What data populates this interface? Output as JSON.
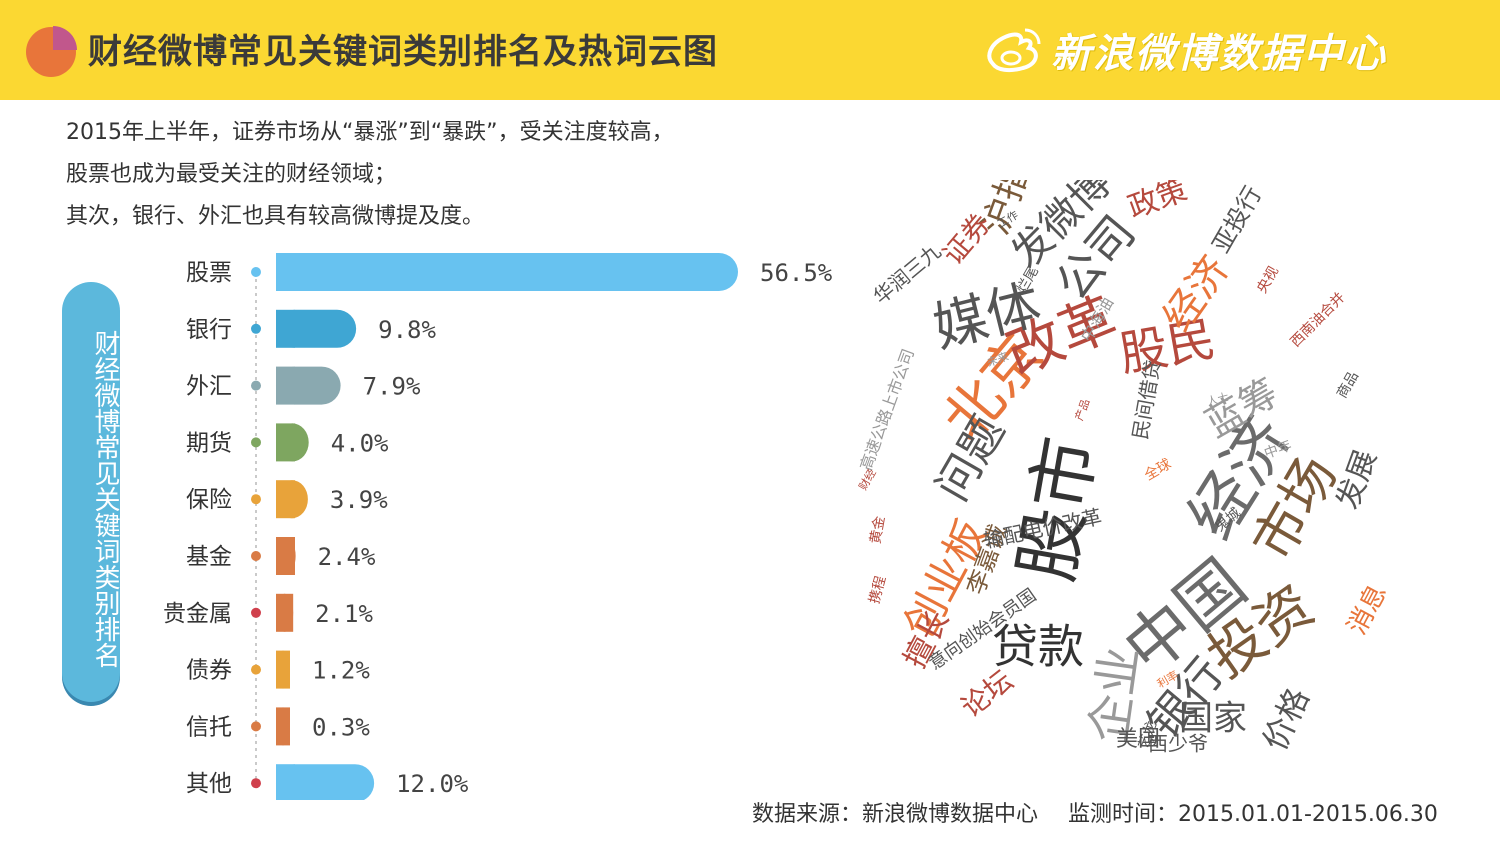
{
  "header": {
    "title": "财经微博常见关键词类别排名及热词云图",
    "brand": "新浪微博数据中心",
    "colors": {
      "background": "#fbd832",
      "pie_main": "#e8753a",
      "pie_slice": "#c1578c"
    }
  },
  "intro": {
    "lines": [
      "2015年上半年，证券市场从“暴涨”到“暴跌”，受关注度较高，",
      "股票也成为最受关注的财经领域；",
      "其次，银行、外汇也具有较高微博提及度。"
    ]
  },
  "side_label": "财经微博常见关键词类别排名",
  "chart_data": {
    "type": "bar",
    "orientation": "horizontal",
    "title": "财经微博常见关键词类别排名",
    "categories": [
      "股票",
      "银行",
      "外汇",
      "期货",
      "保险",
      "基金",
      "贵金属",
      "债券",
      "信托",
      "其他"
    ],
    "values": [
      56.5,
      9.8,
      7.9,
      4.0,
      3.9,
      2.4,
      2.1,
      1.2,
      0.3,
      12.0
    ],
    "value_labels": [
      "56.5%",
      "9.8%",
      "7.9%",
      "4.0%",
      "3.9%",
      "2.4%",
      "2.1%",
      "1.2%",
      "0.3%",
      "12.0%"
    ],
    "unit": "%",
    "colors": [
      "#67c2f0",
      "#3fa6d3",
      "#8aa9b0",
      "#7ea660",
      "#e8a33a",
      "#d97b45",
      "#d97b45",
      "#e8a33a",
      "#d97b45",
      "#67c2f0"
    ],
    "dot_colors": [
      "#67c2f0",
      "#3fa6d3",
      "#8aa9b0",
      "#7ea660",
      "#e8a33a",
      "#d97b45",
      "#d0404c",
      "#e8a33a",
      "#d97b45",
      "#d0404c"
    ],
    "xlim": [
      0,
      56.5
    ],
    "grid": false,
    "legend": "none"
  },
  "word_cloud": {
    "words": [
      {
        "text": "股市",
        "weight": 10,
        "color": "#333333"
      },
      {
        "text": "中国",
        "weight": 9,
        "color": "#6b6b6b"
      },
      {
        "text": "经济",
        "weight": 9,
        "color": "#6b6b6b"
      },
      {
        "text": "北京",
        "weight": 8,
        "color": "#e8753a"
      },
      {
        "text": "改革",
        "weight": 8,
        "color": "#b5493d"
      },
      {
        "text": "媒体",
        "weight": 8,
        "color": "#555555"
      },
      {
        "text": "投资",
        "weight": 8,
        "color": "#7a5a3a"
      },
      {
        "text": "市场",
        "weight": 8,
        "color": "#7a5a3a"
      },
      {
        "text": "企业",
        "weight": 7,
        "color": "#999999"
      },
      {
        "text": "贷款",
        "weight": 7,
        "color": "#333333"
      },
      {
        "text": "股民",
        "weight": 7,
        "color": "#b5493d"
      },
      {
        "text": "公司",
        "weight": 7,
        "color": "#555555"
      },
      {
        "text": "问题",
        "weight": 6,
        "color": "#555555"
      },
      {
        "text": "创业板",
        "weight": 6,
        "color": "#e8753a"
      },
      {
        "text": "银行",
        "weight": 6,
        "color": "#555555"
      },
      {
        "text": "发微博",
        "weight": 6,
        "color": "#555555"
      },
      {
        "text": "经济",
        "weight": 6,
        "color": "#e8753a"
      },
      {
        "text": "蓝筹",
        "weight": 6,
        "color": "#999999"
      },
      {
        "text": "沪指",
        "weight": 6,
        "color": "#7a5a3a"
      },
      {
        "text": "国家",
        "weight": 5,
        "color": "#555555"
      },
      {
        "text": "价格",
        "weight": 5,
        "color": "#555555"
      },
      {
        "text": "发展",
        "weight": 5,
        "color": "#555555"
      },
      {
        "text": "政策",
        "weight": 5,
        "color": "#b5493d"
      },
      {
        "text": "证券",
        "weight": 5,
        "color": "#b5493d"
      },
      {
        "text": "擅长",
        "weight": 5,
        "color": "#b5493d"
      },
      {
        "text": "论坛",
        "weight": 4,
        "color": "#b5493d"
      },
      {
        "text": "消息",
        "weight": 4,
        "color": "#e8753a"
      },
      {
        "text": "李嘉诚",
        "weight": 4,
        "color": "#7a5a3a"
      },
      {
        "text": "亚投行",
        "weight": 4,
        "color": "#555555"
      },
      {
        "text": "美国",
        "weight": 4,
        "color": "#555555"
      },
      {
        "text": "西少爷",
        "weight": 3,
        "color": "#555555"
      },
      {
        "text": "华润三九",
        "weight": 3,
        "color": "#555555"
      },
      {
        "text": "输配电价改革",
        "weight": 3,
        "color": "#555555"
      },
      {
        "text": "意向创始会员国",
        "weight": 3,
        "color": "#555555"
      },
      {
        "text": "民间借贷",
        "weight": 3,
        "color": "#555555"
      },
      {
        "text": "高速公路上市公司",
        "weight": 3,
        "color": "#999999"
      },
      {
        "text": "西南油合并",
        "weight": 3,
        "color": "#b5493d"
      },
      {
        "text": "中海油",
        "weight": 2,
        "color": "#999999"
      },
      {
        "text": "央视",
        "weight": 2,
        "color": "#b5493d"
      },
      {
        "text": "中年",
        "weight": 2,
        "color": "#999999"
      },
      {
        "text": "鬼城",
        "weight": 2,
        "color": "#555555"
      },
      {
        "text": "烂尾",
        "weight": 2,
        "color": "#555555"
      },
      {
        "text": "全球",
        "weight": 2,
        "color": "#e8753a"
      },
      {
        "text": "艺龙",
        "weight": 2,
        "color": "#555555"
      },
      {
        "text": "商品",
        "weight": 2,
        "color": "#555555"
      },
      {
        "text": "携程",
        "weight": 2,
        "color": "#b5493d"
      },
      {
        "text": "黄金",
        "weight": 2,
        "color": "#b5493d"
      },
      {
        "text": "工作",
        "weight": 1,
        "color": "#555555"
      },
      {
        "text": "未来",
        "weight": 1,
        "color": "#999999"
      },
      {
        "text": "人士",
        "weight": 1,
        "color": "#999999"
      },
      {
        "text": "产品",
        "weight": 1,
        "color": "#b5493d"
      },
      {
        "text": "财经",
        "weight": 1,
        "color": "#b5493d"
      },
      {
        "text": "利率",
        "weight": 1,
        "color": "#e8753a"
      }
    ]
  },
  "footer": {
    "source": "数据来源：新浪微博数据中心",
    "period": "监测时间：2015.01.01-2015.06.30"
  }
}
